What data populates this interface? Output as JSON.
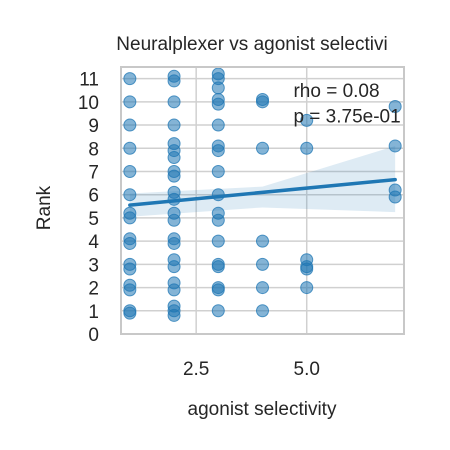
{
  "chart_data": {
    "type": "scatter",
    "title": "Neuralplexer vs agonist selectivi",
    "xlabel": "agonist selectivity",
    "ylabel": "Rank",
    "xlim": [
      0.8,
      7.2
    ],
    "ylim": [
      0,
      11.5
    ],
    "x_ticks": [
      {
        "value": 2.5,
        "label": "2.5"
      },
      {
        "value": 5.0,
        "label": "5.0"
      }
    ],
    "y_ticks": [
      {
        "value": 0,
        "label": "0"
      },
      {
        "value": 1,
        "label": "1"
      },
      {
        "value": 2,
        "label": "2"
      },
      {
        "value": 3,
        "label": "3"
      },
      {
        "value": 4,
        "label": "4"
      },
      {
        "value": 5,
        "label": "5"
      },
      {
        "value": 6,
        "label": "6"
      },
      {
        "value": 7,
        "label": "7"
      },
      {
        "value": 8,
        "label": "8"
      },
      {
        "value": 9,
        "label": "9"
      },
      {
        "value": 10,
        "label": "10"
      },
      {
        "value": 11,
        "label": "11"
      }
    ],
    "grid": true,
    "annotations": [
      {
        "text": "rho = 0.08",
        "x": 4.7,
        "y": 10.2
      },
      {
        "text": "p = 3.75e-01",
        "x": 4.7,
        "y": 9.1
      }
    ],
    "colors": {
      "points": "#1f77b4",
      "line": "#1f77b4",
      "band": "#1f77b4",
      "grid": "#d0d0d0",
      "spine": "#c8c8c8"
    },
    "series": [
      {
        "name": "points",
        "points": [
          {
            "x": 1.0,
            "y": 11
          },
          {
            "x": 1.0,
            "y": 10
          },
          {
            "x": 1.0,
            "y": 9
          },
          {
            "x": 1.0,
            "y": 8
          },
          {
            "x": 1.0,
            "y": 7
          },
          {
            "x": 1.0,
            "y": 6
          },
          {
            "x": 1.0,
            "y": 5.2
          },
          {
            "x": 1.0,
            "y": 5
          },
          {
            "x": 1.0,
            "y": 4.1
          },
          {
            "x": 1.0,
            "y": 3.9
          },
          {
            "x": 1.0,
            "y": 3
          },
          {
            "x": 1.0,
            "y": 2.8
          },
          {
            "x": 1.0,
            "y": 2.1
          },
          {
            "x": 1.0,
            "y": 1.9
          },
          {
            "x": 1.0,
            "y": 1
          },
          {
            "x": 1.0,
            "y": 0.9
          },
          {
            "x": 2.0,
            "y": 11.1
          },
          {
            "x": 2.0,
            "y": 10.9
          },
          {
            "x": 2.0,
            "y": 10
          },
          {
            "x": 2.0,
            "y": 9
          },
          {
            "x": 2.0,
            "y": 8.2
          },
          {
            "x": 2.0,
            "y": 7.9
          },
          {
            "x": 2.0,
            "y": 7.6
          },
          {
            "x": 2.0,
            "y": 7
          },
          {
            "x": 2.0,
            "y": 6.8
          },
          {
            "x": 2.0,
            "y": 6.1
          },
          {
            "x": 2.0,
            "y": 5.8
          },
          {
            "x": 2.0,
            "y": 5.2
          },
          {
            "x": 2.0,
            "y": 4.9
          },
          {
            "x": 2.0,
            "y": 4.1
          },
          {
            "x": 2.0,
            "y": 3.9
          },
          {
            "x": 2.0,
            "y": 3.2
          },
          {
            "x": 2.0,
            "y": 2.9
          },
          {
            "x": 2.0,
            "y": 2.2
          },
          {
            "x": 2.0,
            "y": 1.9
          },
          {
            "x": 2.0,
            "y": 1.2
          },
          {
            "x": 2.0,
            "y": 1
          },
          {
            "x": 2.0,
            "y": 0.8
          },
          {
            "x": 3.0,
            "y": 11.2
          },
          {
            "x": 3.0,
            "y": 11
          },
          {
            "x": 3.0,
            "y": 10.6
          },
          {
            "x": 3.0,
            "y": 10.1
          },
          {
            "x": 3.0,
            "y": 9.9
          },
          {
            "x": 3.0,
            "y": 9
          },
          {
            "x": 3.0,
            "y": 8.1
          },
          {
            "x": 3.0,
            "y": 7.9
          },
          {
            "x": 3.0,
            "y": 7
          },
          {
            "x": 3.0,
            "y": 6
          },
          {
            "x": 3.0,
            "y": 5.2
          },
          {
            "x": 3.0,
            "y": 4.9
          },
          {
            "x": 3.0,
            "y": 4
          },
          {
            "x": 3.0,
            "y": 3
          },
          {
            "x": 3.0,
            "y": 2.9
          },
          {
            "x": 3.0,
            "y": 2
          },
          {
            "x": 3.0,
            "y": 1.9
          },
          {
            "x": 3.0,
            "y": 1
          },
          {
            "x": 4.0,
            "y": 10.1
          },
          {
            "x": 4.0,
            "y": 10
          },
          {
            "x": 4.0,
            "y": 8
          },
          {
            "x": 4.0,
            "y": 4
          },
          {
            "x": 4.0,
            "y": 3
          },
          {
            "x": 4.0,
            "y": 2
          },
          {
            "x": 4.0,
            "y": 1
          },
          {
            "x": 5.0,
            "y": 9.2
          },
          {
            "x": 5.0,
            "y": 8
          },
          {
            "x": 5.0,
            "y": 3.2
          },
          {
            "x": 5.0,
            "y": 2.9
          },
          {
            "x": 5.0,
            "y": 2.8
          },
          {
            "x": 5.0,
            "y": 2
          },
          {
            "x": 7.0,
            "y": 9.8
          },
          {
            "x": 7.0,
            "y": 8.1
          },
          {
            "x": 7.0,
            "y": 6.2
          },
          {
            "x": 7.0,
            "y": 5.9
          }
        ]
      }
    ],
    "regression": {
      "x_range": [
        1.0,
        7.0
      ],
      "y_at_start": 5.55,
      "y_at_end": 6.65,
      "ci_lower_at_start": 5.05,
      "ci_upper_at_start": 6.05,
      "ci_lower_at_mid": 5.45,
      "ci_upper_at_mid": 6.35,
      "ci_lower_at_end": 5.25,
      "ci_upper_at_end": 8.1
    }
  }
}
